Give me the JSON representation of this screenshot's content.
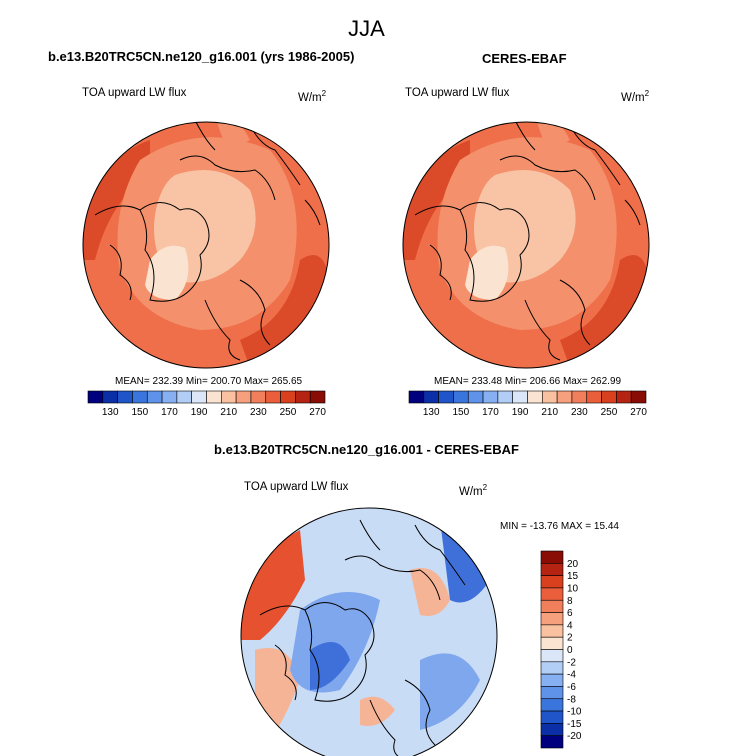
{
  "page_title": "JJA",
  "panel_left": {
    "title": "b.e13.B20TRC5CN.ne120_g16.001 (yrs 1986-2005)",
    "variable": "TOA upward LW flux",
    "units_base": "W/m",
    "units_exp": "2",
    "stats": "MEAN= 232.39  Min= 200.70  Max= 265.65"
  },
  "panel_right": {
    "title": "CERES-EBAF",
    "variable": "TOA upward LW flux",
    "units_base": "W/m",
    "units_exp": "2",
    "stats": "MEAN= 233.48  Min= 206.66  Max= 262.99"
  },
  "panel_diff": {
    "title": "b.e13.B20TRC5CN.ne120_g16.001 - CERES-EBAF",
    "variable": "TOA upward LW flux",
    "units_base": "W/m",
    "units_exp": "2",
    "stats": "MIN = -13.76 MAX =  15.44"
  },
  "colorbar_top": {
    "colors": [
      "#00007f",
      "#0a2fa6",
      "#1f55c8",
      "#3a75dd",
      "#5f93ea",
      "#86b0f2",
      "#b2cdf6",
      "#dbe7f8",
      "#fbe3d2",
      "#f9c1a0",
      "#f6a07d",
      "#f17f5c",
      "#ea5e3c",
      "#d9401e",
      "#b52412",
      "#8a0d05"
    ],
    "labels": [
      "130",
      "150",
      "170",
      "190",
      "210",
      "230",
      "250",
      "270"
    ]
  },
  "colorbar_diff": {
    "colors": [
      "#8a0d05",
      "#b52412",
      "#d9401e",
      "#ea5e3c",
      "#f17f5c",
      "#f6a07d",
      "#f9c1a0",
      "#fbe3d2",
      "#dbe7f8",
      "#b2cdf6",
      "#86b0f2",
      "#5f93ea",
      "#3a75dd",
      "#1f55c8",
      "#0a2fa6",
      "#00007f"
    ],
    "labels": [
      "20",
      "15",
      "10",
      "8",
      "6",
      "4",
      "2",
      "0",
      "-2",
      "-4",
      "-6",
      "-8",
      "-10",
      "-15",
      "-20"
    ]
  },
  "map_colors": {
    "bg_orange": "#ee6f49",
    "mid_orange": "#f4916c",
    "light": "#f9c4a6",
    "pale": "#fbe3d2",
    "deep": "#dc4b29",
    "diff_bg": "#c9dcf5",
    "diff_blue": "#7ea7ee",
    "diff_darkblue": "#3f6fd9",
    "diff_red": "#e6512f",
    "diff_pink": "#f6b497"
  }
}
